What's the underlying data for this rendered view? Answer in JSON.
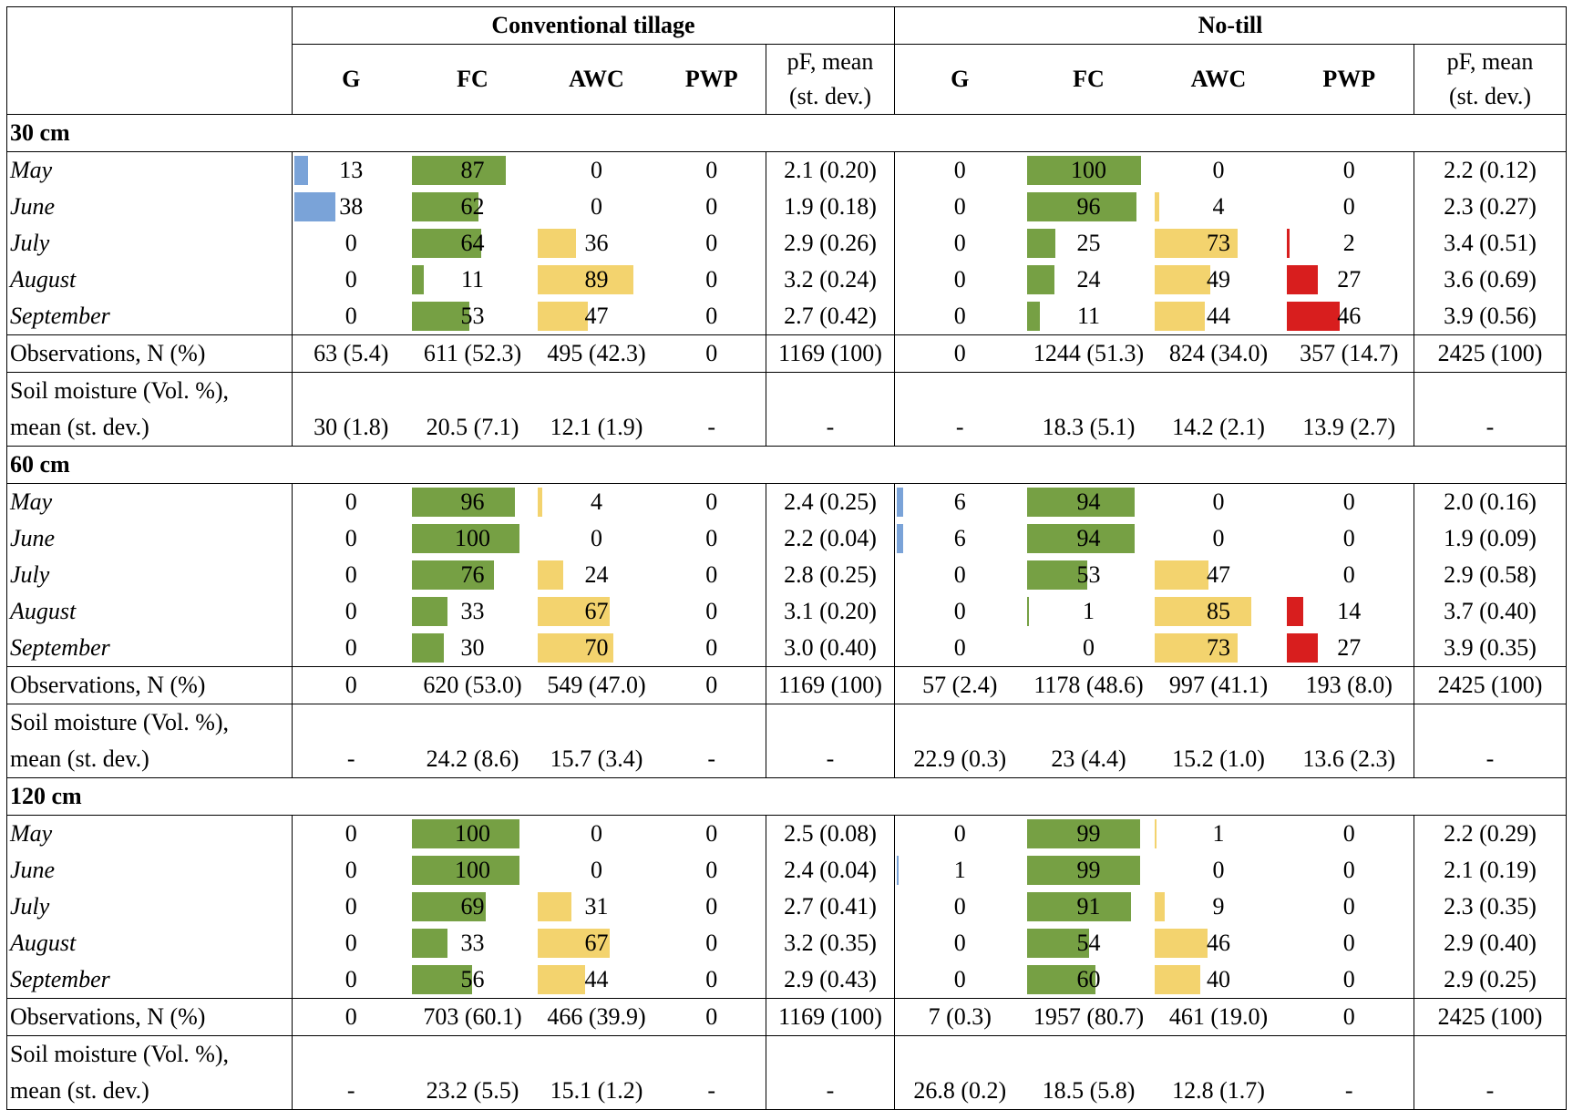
{
  "header": {
    "groups": [
      "Conventional tillage",
      "No-till"
    ],
    "columns": [
      "G",
      "FC",
      "AWC",
      "PWP"
    ],
    "pf_label_line1": "pF, mean",
    "pf_label_line2": "(st. dev.)"
  },
  "colors": {
    "G": "#7aa3d8",
    "FC": "#76a044",
    "AWC": "#f3d36e",
    "PWP": "#d81e1e"
  },
  "sections": [
    {
      "depth": "30 cm",
      "months": [
        {
          "name": "May",
          "ct": [
            "13",
            "87",
            "0",
            "0",
            "2.1 (0.20)"
          ],
          "nt": [
            "0",
            "100",
            "0",
            "0",
            "2.2 (0.12)"
          ]
        },
        {
          "name": "June",
          "ct": [
            "38",
            "62",
            "0",
            "0",
            "1.9 (0.18)"
          ],
          "nt": [
            "0",
            "96",
            "4",
            "0",
            "2.3 (0.27)"
          ]
        },
        {
          "name": "July",
          "ct": [
            "0",
            "64",
            "36",
            "0",
            "2.9 (0.26)"
          ],
          "nt": [
            "0",
            "25",
            "73",
            "2",
            "3.4 (0.51)"
          ]
        },
        {
          "name": "August",
          "ct": [
            "0",
            "11",
            "89",
            "0",
            "3.2 (0.24)"
          ],
          "nt": [
            "0",
            "24",
            "49",
            "27",
            "3.6 (0.69)"
          ]
        },
        {
          "name": "September",
          "ct": [
            "0",
            "53",
            "47",
            "0",
            "2.7 (0.42)"
          ],
          "nt": [
            "0",
            "11",
            "44",
            "46",
            "3.9 (0.56)"
          ]
        }
      ],
      "observations": {
        "label": "Observations, N (%)",
        "ct": [
          "63 (5.4)",
          "611 (52.3)",
          "495 (42.3)",
          "0",
          "1169 (100)"
        ],
        "nt": [
          "0",
          "1244 (51.3)",
          "824 (34.0)",
          "357 (14.7)",
          "2425 (100)"
        ]
      },
      "moisture": {
        "label1": "Soil moisture (Vol. %),",
        "label2": "mean (st. dev.)",
        "ct": [
          "30 (1.8)",
          "20.5 (7.1)",
          "12.1 (1.9)",
          "-",
          "-"
        ],
        "nt": [
          "-",
          "18.3 (5.1)",
          "14.2 (2.1)",
          "13.9 (2.7)",
          "-"
        ]
      }
    },
    {
      "depth": "60 cm",
      "months": [
        {
          "name": "May",
          "ct": [
            "0",
            "96",
            "4",
            "0",
            "2.4 (0.25)"
          ],
          "nt": [
            "6",
            "94",
            "0",
            "0",
            "2.0 (0.16)"
          ]
        },
        {
          "name": "June",
          "ct": [
            "0",
            "100",
            "0",
            "0",
            "2.2 (0.04)"
          ],
          "nt": [
            "6",
            "94",
            "0",
            "0",
            "1.9 (0.09)"
          ]
        },
        {
          "name": "July",
          "ct": [
            "0",
            "76",
            "24",
            "0",
            "2.8 (0.25)"
          ],
          "nt": [
            "0",
            "53",
            "47",
            "0",
            "2.9 (0.58)"
          ]
        },
        {
          "name": "August",
          "ct": [
            "0",
            "33",
            "67",
            "0",
            "3.1 (0.20)"
          ],
          "nt": [
            "0",
            "1",
            "85",
            "14",
            "3.7 (0.40)"
          ]
        },
        {
          "name": "September",
          "ct": [
            "0",
            "30",
            "70",
            "0",
            "3.0 (0.40)"
          ],
          "nt": [
            "0",
            "0",
            "73",
            "27",
            "3.9 (0.35)"
          ]
        }
      ],
      "observations": {
        "label": "Observations, N (%)",
        "ct": [
          "0",
          "620 (53.0)",
          "549 (47.0)",
          "0",
          "1169 (100)"
        ],
        "nt": [
          "57 (2.4)",
          "1178 (48.6)",
          "997 (41.1)",
          "193 (8.0)",
          "2425 (100)"
        ]
      },
      "moisture": {
        "label1": "Soil moisture (Vol. %),",
        "label2": "mean (st. dev.)",
        "ct": [
          "-",
          "24.2 (8.6)",
          "15.7 (3.4)",
          "-",
          "-"
        ],
        "nt": [
          "22.9 (0.3)",
          "23 (4.4)",
          "15.2 (1.0)",
          "13.6 (2.3)",
          "-"
        ]
      }
    },
    {
      "depth": "120 cm",
      "months": [
        {
          "name": "May",
          "ct": [
            "0",
            "100",
            "0",
            "0",
            "2.5 (0.08)"
          ],
          "nt": [
            "0",
            "99",
            "1",
            "0",
            "2.2 (0.29)"
          ]
        },
        {
          "name": "June",
          "ct": [
            "0",
            "100",
            "0",
            "0",
            "2.4 (0.04)"
          ],
          "nt": [
            "1",
            "99",
            "0",
            "0",
            "2.1 (0.19)"
          ]
        },
        {
          "name": "July",
          "ct": [
            "0",
            "69",
            "31",
            "0",
            "2.7 (0.41)"
          ],
          "nt": [
            "0",
            "91",
            "9",
            "0",
            "2.3 (0.35)"
          ]
        },
        {
          "name": "August",
          "ct": [
            "0",
            "33",
            "67",
            "0",
            "3.2 (0.35)"
          ],
          "nt": [
            "0",
            "54",
            "46",
            "0",
            "2.9 (0.40)"
          ]
        },
        {
          "name": "September",
          "ct": [
            "0",
            "56",
            "44",
            "0",
            "2.9 (0.43)"
          ],
          "nt": [
            "0",
            "60",
            "40",
            "0",
            "2.9 (0.25)"
          ]
        }
      ],
      "observations": {
        "label": "Observations, N (%)",
        "ct": [
          "0",
          "703 (60.1)",
          "466 (39.9)",
          "0",
          "1169 (100)"
        ],
        "nt": [
          "7 (0.3)",
          "1957 (80.7)",
          "461 (19.0)",
          "0",
          "2425 (100)"
        ]
      },
      "moisture": {
        "label1": "Soil moisture (Vol. %),",
        "label2": "mean (st. dev.)",
        "ct": [
          "-",
          "23.2 (5.5)",
          "15.1 (1.2)",
          "-",
          "-"
        ],
        "nt": [
          "26.8 (0.2)",
          "18.5 (5.8)",
          "12.8 (1.7)",
          "-",
          "-"
        ]
      }
    }
  ]
}
